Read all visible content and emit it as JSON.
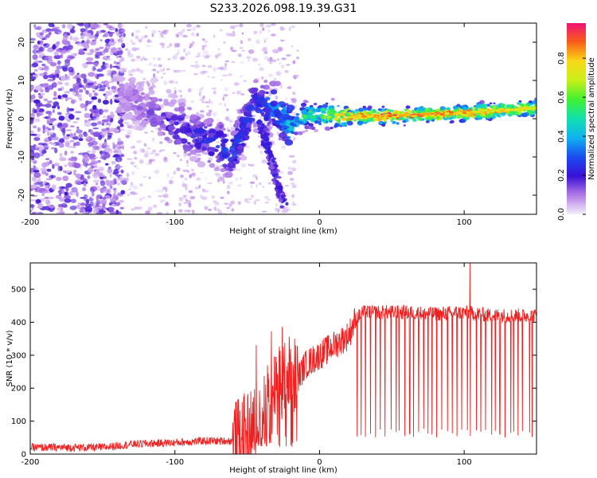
{
  "figure_title": "S233.2026.098.19.39.G31",
  "chart_data": [
    {
      "type": "heatmap",
      "title": "S233.2026.098.19.39.G31",
      "xlabel": "Height of straight line (km)",
      "ylabel": "Frequency (Hz)",
      "xlim": [
        -200,
        150
      ],
      "ylim": [
        -25,
        25
      ],
      "xticks": [
        "-200",
        "-100",
        "0",
        "100"
      ],
      "yticks": [
        "-20",
        "-10",
        "0",
        "10",
        "20"
      ],
      "colorbar": {
        "label": "Normalized spectral amplitude",
        "range": [
          0,
          0.98
        ],
        "ticks": [
          "0.0",
          "0.2",
          "0.4",
          "0.6",
          "0.8"
        ]
      },
      "ridge": {
        "description": "frequency of peak amplitude vs height",
        "x": [
          -135,
          -120,
          -100,
          -80,
          -60,
          -45,
          -30,
          -20,
          -10,
          0,
          20,
          50,
          100,
          150
        ],
        "y": [
          6,
          3,
          -2,
          -5,
          -9,
          4,
          3,
          -2,
          1,
          1,
          0.5,
          0.8,
          1.5,
          2.8
        ],
        "amplitude": [
          0.1,
          0.15,
          0.2,
          0.25,
          0.3,
          0.25,
          0.35,
          0.45,
          0.55,
          0.6,
          0.85,
          0.95,
          0.9,
          0.8
        ]
      }
    },
    {
      "type": "line",
      "xlabel": "Height of straight line (km)",
      "ylabel": "SNR (10 * v/v)",
      "xlim": [
        -200,
        150
      ],
      "ylim": [
        0,
        580
      ],
      "xticks": [
        "-200",
        "-100",
        "0",
        "100"
      ],
      "yticks": [
        "0",
        "100",
        "200",
        "300",
        "400",
        "500"
      ],
      "series": [
        {
          "name": "SNR",
          "color": "#ee2020",
          "x": [
            -200,
            -150,
            -130,
            -100,
            -80,
            -60,
            -50,
            -40,
            -30,
            -20,
            -15,
            -10,
            0,
            10,
            20,
            25,
            30,
            40,
            60,
            80,
            100,
            120,
            150
          ],
          "values": [
            20,
            20,
            30,
            35,
            40,
            40,
            70,
            120,
            200,
            250,
            230,
            270,
            300,
            330,
            360,
            410,
            430,
            430,
            430,
            425,
            430,
            420,
            420
          ],
          "dropouts": {
            "x_start": 25,
            "x_end": 150,
            "count": 38,
            "floor": 65
          },
          "peak": {
            "x": 104,
            "value": 580
          }
        }
      ]
    }
  ]
}
